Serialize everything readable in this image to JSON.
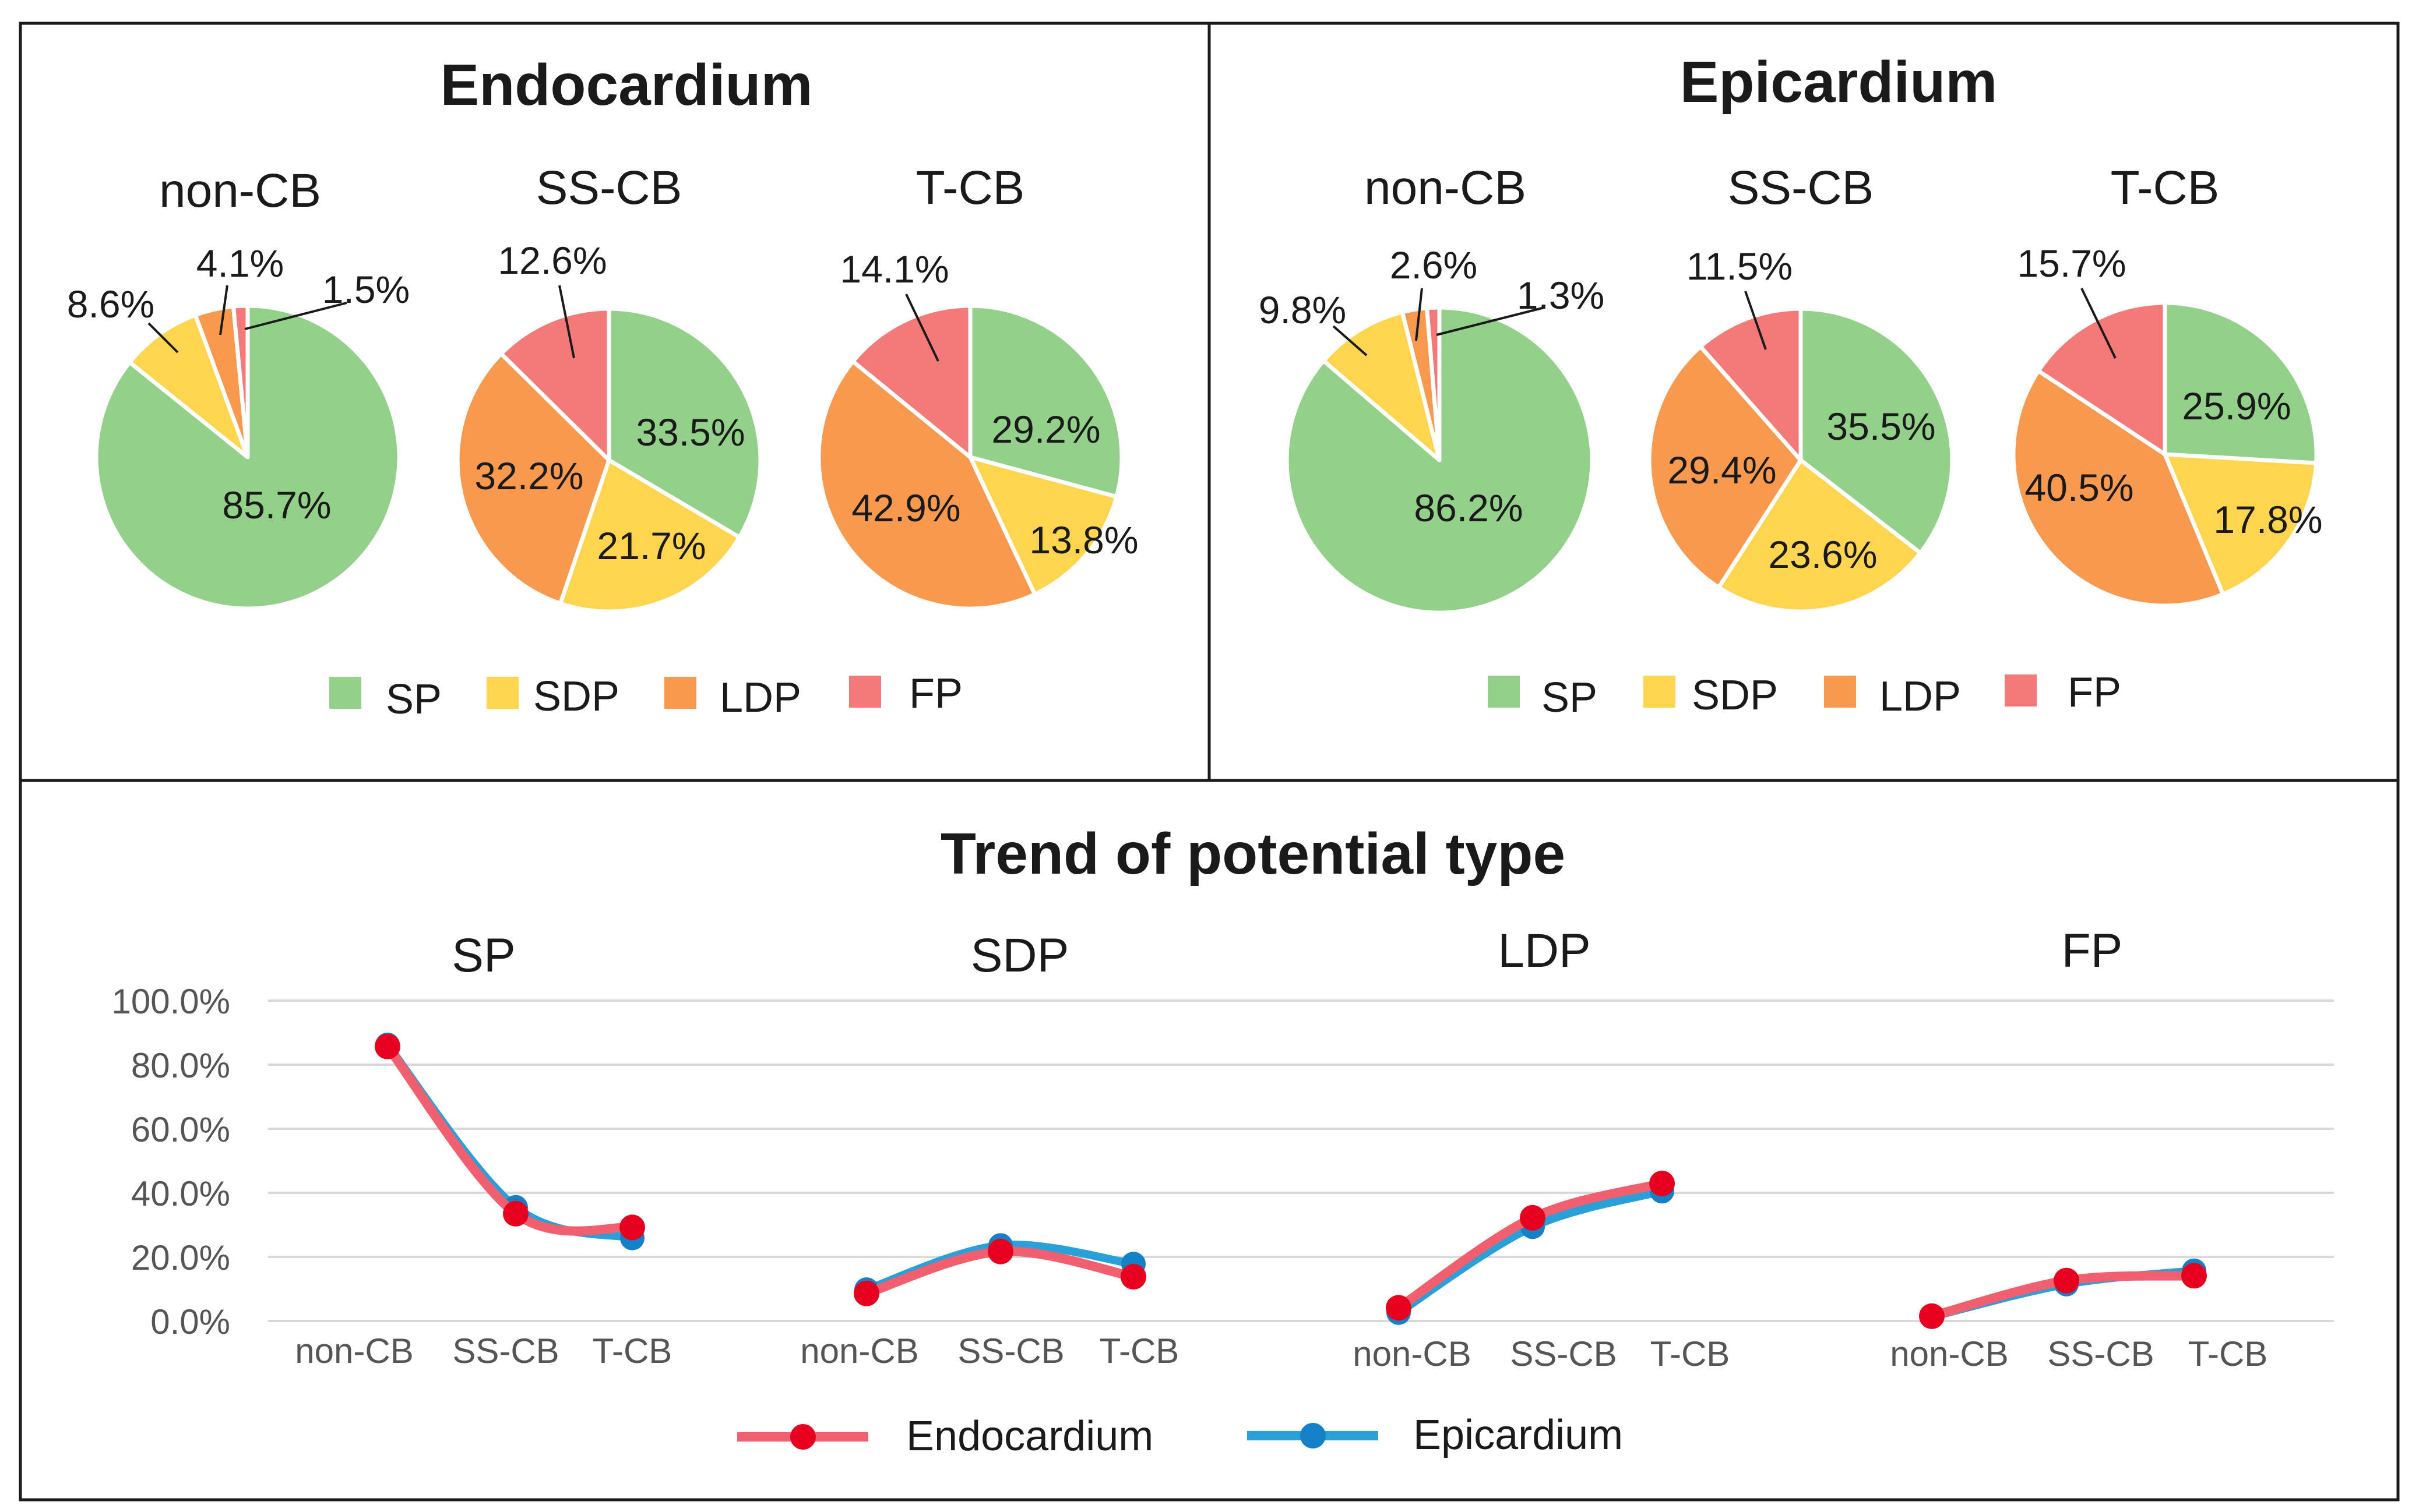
{
  "colors": {
    "SP": "#93d18a",
    "SDP": "#ffd54f",
    "LDP": "#f79a4f",
    "FP": "#f47a7a",
    "endocardium_line": "#f0606e",
    "endocardium_marker": "#e8001f",
    "epicardium_line": "#2aa0d8",
    "epicardium_marker": "#1480c8"
  },
  "legend": [
    "SP",
    "SDP",
    "LDP",
    "FP"
  ],
  "line_legend": [
    "Endocardium",
    "Epicardium"
  ],
  "chart_data": [
    {
      "type": "pie",
      "title": "Endocardium",
      "pies": [
        {
          "title": "non-CB",
          "slices": [
            {
              "label": "SP",
              "value": 85.7,
              "text": "85.7%"
            },
            {
              "label": "SDP",
              "value": 8.6,
              "text": "8.6%"
            },
            {
              "label": "LDP",
              "value": 4.1,
              "text": "4.1%"
            },
            {
              "label": "FP",
              "value": 1.5,
              "text": "1.5%"
            }
          ]
        },
        {
          "title": "SS-CB",
          "slices": [
            {
              "label": "SP",
              "value": 33.5,
              "text": "33.5%"
            },
            {
              "label": "SDP",
              "value": 21.7,
              "text": "21.7%"
            },
            {
              "label": "LDP",
              "value": 32.2,
              "text": "32.2%"
            },
            {
              "label": "FP",
              "value": 12.6,
              "text": "12.6%"
            }
          ]
        },
        {
          "title": "T-CB",
          "slices": [
            {
              "label": "SP",
              "value": 29.2,
              "text": "29.2%"
            },
            {
              "label": "SDP",
              "value": 13.8,
              "text": "13.8%"
            },
            {
              "label": "LDP",
              "value": 42.9,
              "text": "42.9%"
            },
            {
              "label": "FP",
              "value": 14.1,
              "text": "14.1%"
            }
          ]
        }
      ]
    },
    {
      "type": "pie",
      "title": "Epicardium",
      "pies": [
        {
          "title": "non-CB",
          "slices": [
            {
              "label": "SP",
              "value": 86.2,
              "text": "86.2%"
            },
            {
              "label": "SDP",
              "value": 9.8,
              "text": "9.8%"
            },
            {
              "label": "LDP",
              "value": 2.6,
              "text": "2.6%"
            },
            {
              "label": "FP",
              "value": 1.3,
              "text": "1.3%"
            }
          ]
        },
        {
          "title": "SS-CB",
          "slices": [
            {
              "label": "SP",
              "value": 35.5,
              "text": "35.5%"
            },
            {
              "label": "SDP",
              "value": 23.6,
              "text": "23.6%"
            },
            {
              "label": "LDP",
              "value": 29.4,
              "text": "29.4%"
            },
            {
              "label": "FP",
              "value": 11.5,
              "text": "11.5%"
            }
          ]
        },
        {
          "title": "T-CB",
          "slices": [
            {
              "label": "SP",
              "value": 25.9,
              "text": "25.9%"
            },
            {
              "label": "SDP",
              "value": 17.8,
              "text": "17.8%"
            },
            {
              "label": "LDP",
              "value": 40.5,
              "text": "40.5%"
            },
            {
              "label": "FP",
              "value": 15.7,
              "text": "15.7%"
            }
          ]
        }
      ]
    },
    {
      "type": "line",
      "title": "Trend of potential type",
      "y_ticks": [
        "100.0%",
        "80.0%",
        "60.0%",
        "40.0%",
        "20.0%",
        "0.0%"
      ],
      "ylim": [
        0,
        100
      ],
      "categories": [
        "non-CB",
        "SS-CB",
        "T-CB"
      ],
      "groups": [
        {
          "name": "SP",
          "series": [
            {
              "name": "Endocardium",
              "values": [
                85.7,
                33.5,
                29.2
              ]
            },
            {
              "name": "Epicardium",
              "values": [
                86.2,
                35.5,
                25.9
              ]
            }
          ]
        },
        {
          "name": "SDP",
          "series": [
            {
              "name": "Endocardium",
              "values": [
                8.6,
                21.7,
                13.8
              ]
            },
            {
              "name": "Epicardium",
              "values": [
                9.8,
                23.6,
                17.8
              ]
            }
          ]
        },
        {
          "name": "LDP",
          "series": [
            {
              "name": "Endocardium",
              "values": [
                4.1,
                32.2,
                42.9
              ]
            },
            {
              "name": "Epicardium",
              "values": [
                2.6,
                29.4,
                40.5
              ]
            }
          ]
        },
        {
          "name": "FP",
          "series": [
            {
              "name": "Endocardium",
              "values": [
                1.5,
                12.6,
                14.1
              ]
            },
            {
              "name": "Epicardium",
              "values": [
                1.3,
                11.5,
                15.7
              ]
            }
          ]
        }
      ]
    }
  ]
}
